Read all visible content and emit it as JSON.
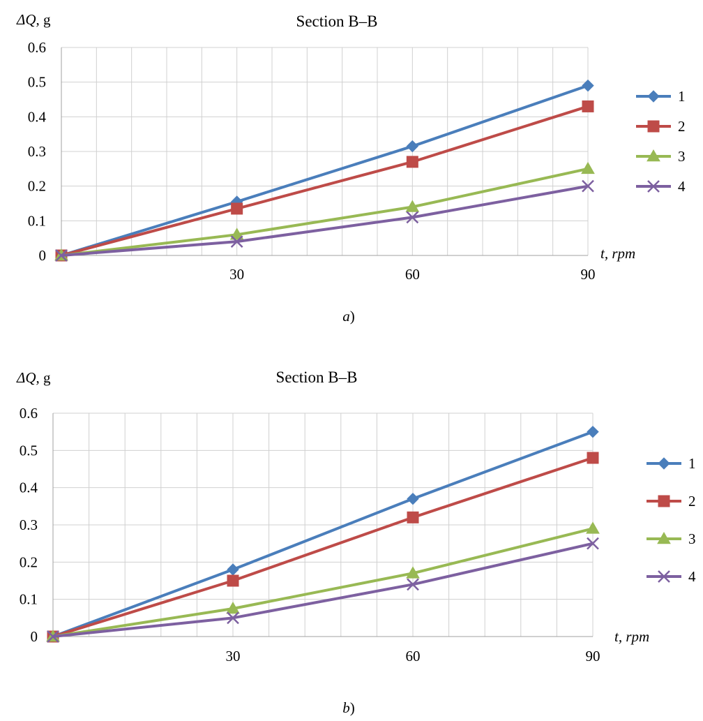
{
  "chart_data": [
    {
      "type": "line",
      "title": "Section B–B",
      "ylabel_symbol": "ΔQ",
      "ylabel_unit": ", g",
      "xlabel_var": "t",
      "xlabel_unit": ", rpm",
      "caption_letter": "a",
      "caption_paren": ")",
      "ylim": [
        0,
        0.6
      ],
      "xlim": [
        0,
        90
      ],
      "ytick_labels": [
        "0",
        "0.1",
        "0.2",
        "0.3",
        "0.4",
        "0.5",
        "0.6"
      ],
      "xtick_labels": [
        "30",
        "60",
        "90"
      ],
      "x": [
        0,
        30,
        60,
        90
      ],
      "grid": true,
      "legend_position": "right",
      "series": [
        {
          "name": "1",
          "color": "#4a7ebb",
          "marker": "diamond",
          "values": [
            0,
            0.155,
            0.315,
            0.49
          ]
        },
        {
          "name": "2",
          "color": "#be4b48",
          "marker": "square",
          "values": [
            0,
            0.135,
            0.27,
            0.43
          ]
        },
        {
          "name": "3",
          "color": "#98b954",
          "marker": "triangle",
          "values": [
            0,
            0.06,
            0.14,
            0.25
          ]
        },
        {
          "name": "4",
          "color": "#7d60a0",
          "marker": "x",
          "values": [
            0,
            0.04,
            0.11,
            0.2
          ]
        }
      ]
    },
    {
      "type": "line",
      "title": "Section B–B",
      "ylabel_symbol": "ΔQ",
      "ylabel_unit": ", g",
      "xlabel_var": "t",
      "xlabel_unit": ", rpm",
      "caption_letter": "b",
      "caption_paren": ")",
      "ylim": [
        0,
        0.6
      ],
      "xlim": [
        0,
        90
      ],
      "ytick_labels": [
        "0",
        "0.1",
        "0.2",
        "0.3",
        "0.4",
        "0.5",
        "0.6"
      ],
      "xtick_labels": [
        "30",
        "60",
        "90"
      ],
      "x": [
        0,
        30,
        60,
        90
      ],
      "grid": true,
      "legend_position": "right",
      "series": [
        {
          "name": "1",
          "color": "#4a7ebb",
          "marker": "diamond",
          "values": [
            0,
            0.18,
            0.37,
            0.55
          ]
        },
        {
          "name": "2",
          "color": "#be4b48",
          "marker": "square",
          "values": [
            0,
            0.15,
            0.32,
            0.48
          ]
        },
        {
          "name": "3",
          "color": "#98b954",
          "marker": "triangle",
          "values": [
            0,
            0.075,
            0.17,
            0.29
          ]
        },
        {
          "name": "4",
          "color": "#7d60a0",
          "marker": "x",
          "values": [
            0,
            0.05,
            0.14,
            0.25
          ]
        }
      ]
    }
  ]
}
